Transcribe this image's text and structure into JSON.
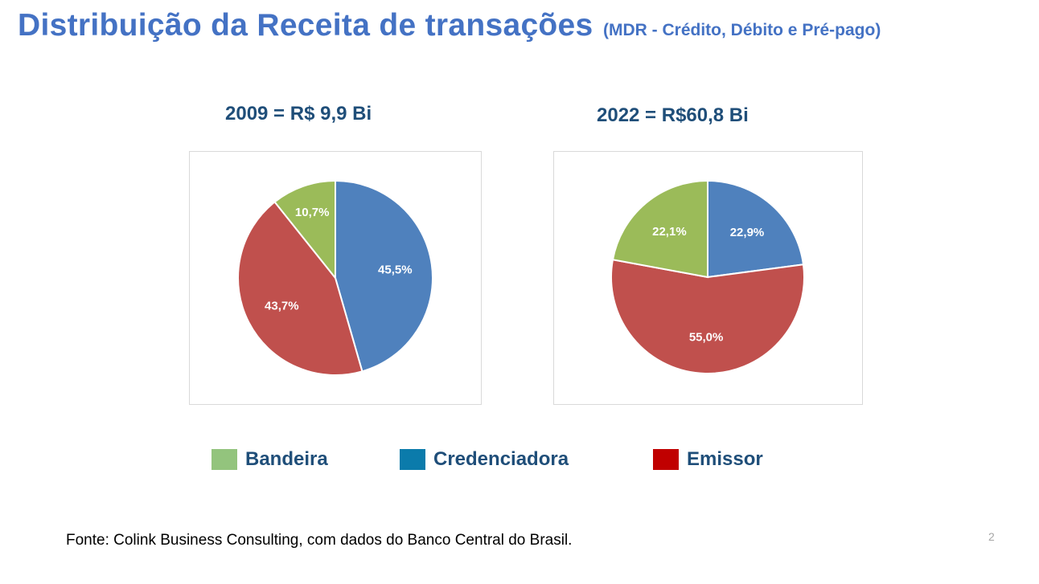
{
  "title": "Distribuição da Receita de transações",
  "subtitle": "(MDR - Crédito, Débito e Pré-pago)",
  "legend": [
    {
      "label": "Bandeira",
      "color": "#93c47d"
    },
    {
      "label": "Credenciadora",
      "color": "#0b7bab"
    },
    {
      "label": "Emissor",
      "color": "#c00000"
    }
  ],
  "chart_data": [
    {
      "type": "pie",
      "title": "2009 = R$ 9,9 Bi",
      "slices": [
        {
          "label": "Credenciadora",
          "value": 45.5,
          "text": "45,5%",
          "color": "#4f81bd"
        },
        {
          "label": "Emissor",
          "value": 43.7,
          "text": "43,7%",
          "color": "#c0504d"
        },
        {
          "label": "Bandeira",
          "value": 10.7,
          "text": "10,7%",
          "color": "#9bbb59"
        }
      ]
    },
    {
      "type": "pie",
      "title": "2022 = R$60,8 Bi",
      "slices": [
        {
          "label": "Credenciadora",
          "value": 22.9,
          "text": "22,9%",
          "color": "#4f81bd"
        },
        {
          "label": "Emissor",
          "value": 55.0,
          "text": "55,0%",
          "color": "#c0504d"
        },
        {
          "label": "Bandeira",
          "value": 22.1,
          "text": "22,1%",
          "color": "#9bbb59"
        }
      ]
    }
  ],
  "source": "Fonte: Colink Business Consulting, com dados do Banco Central do Brasil.",
  "page_number": "2"
}
